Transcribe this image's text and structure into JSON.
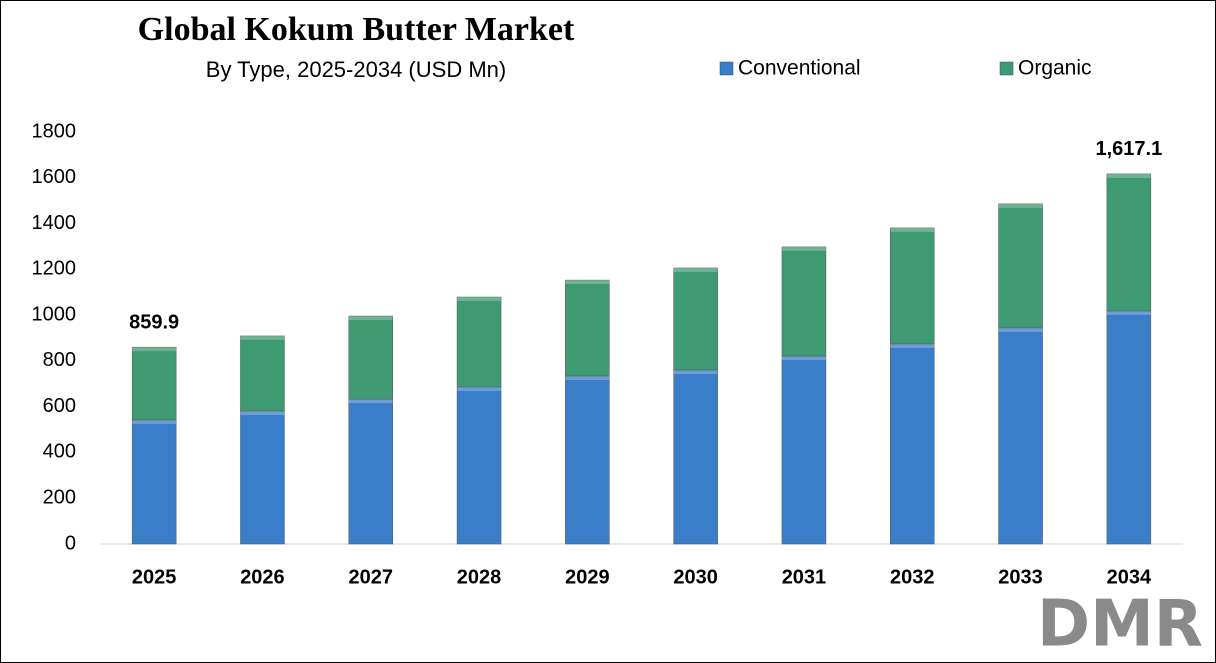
{
  "chart_data": {
    "type": "stacked_bar",
    "title": "Global Kokum Butter Market",
    "subtitle": "By Type, 2025-2034 (USD Mn)",
    "categories": [
      "2025",
      "2026",
      "2027",
      "2028",
      "2029",
      "2030",
      "2031",
      "2032",
      "2033",
      "2034"
    ],
    "series": [
      {
        "name": "Conventional",
        "color": "#3a7dc9",
        "values": [
          542,
          581,
          633,
          686,
          734,
          760,
          821,
          874,
          944,
          1018
        ]
      },
      {
        "name": "Organic",
        "color": "#3e9a72",
        "values": [
          317.9,
          328,
          363,
          393,
          419,
          446,
          477,
          507,
          542,
          599.1
        ]
      }
    ],
    "annotations": [
      {
        "x": "2025",
        "value": 859.9
      },
      {
        "x": "2034",
        "value": 1617.1,
        "label": "1,617.1"
      }
    ],
    "ylim": [
      0,
      1800
    ],
    "yticks": [
      0,
      200,
      400,
      600,
      800,
      1000,
      1200,
      1400,
      1600,
      1800
    ],
    "legend": "top",
    "logo": "DMR"
  }
}
